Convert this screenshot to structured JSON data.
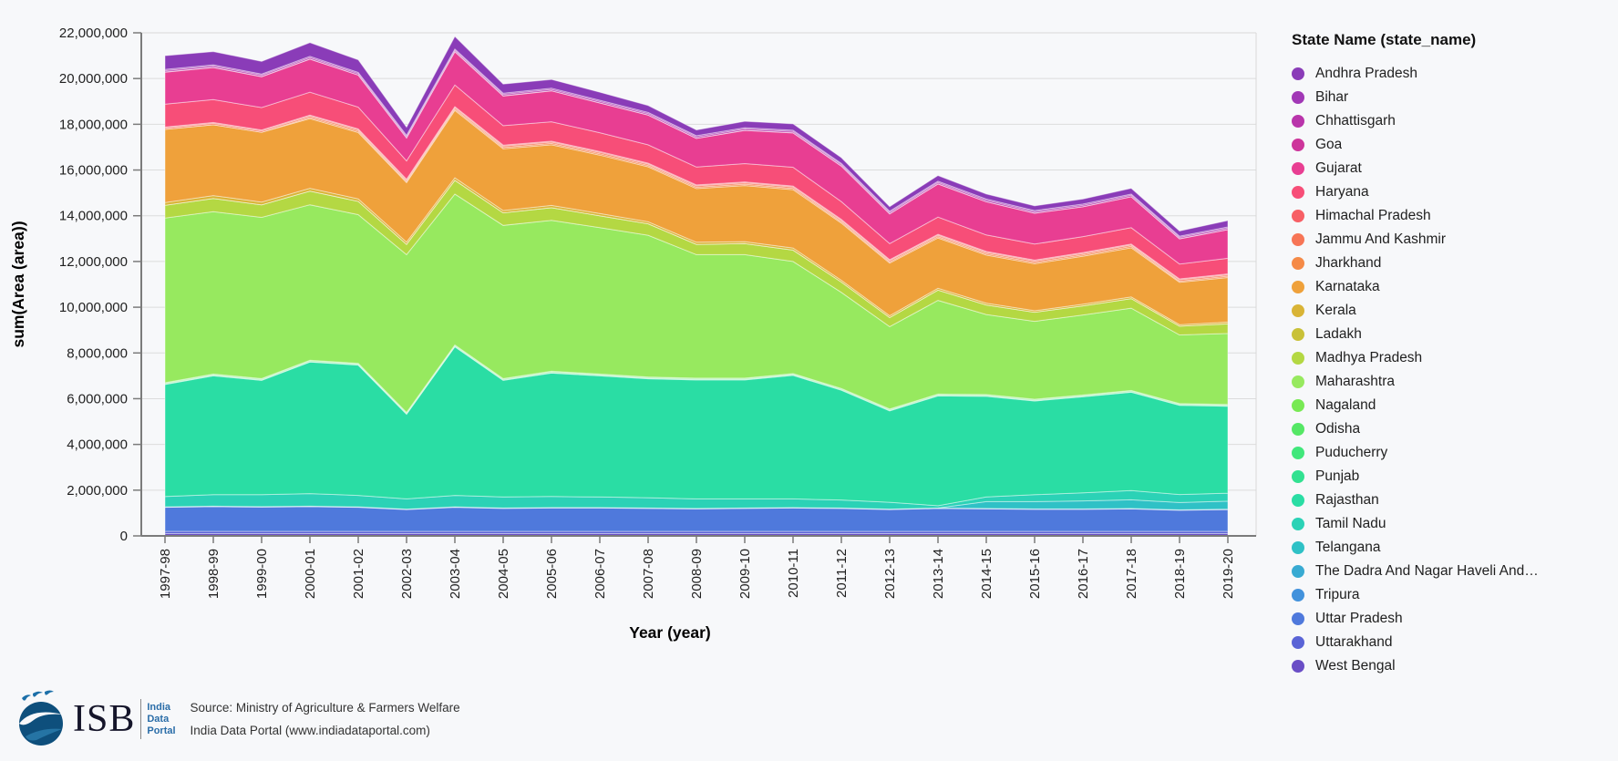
{
  "page": {
    "background": "#f7f8fa"
  },
  "chart": {
    "y_axis": {
      "title": "sum(Area (area))",
      "tick_labels": [
        "0",
        "2,000,000",
        "4,000,000",
        "6,000,000",
        "8,000,000",
        "10,000,000",
        "12,000,000",
        "14,000,000",
        "16,000,000",
        "18,000,000",
        "20,000,000",
        "22,000,000"
      ],
      "tick_step": 2000000
    },
    "x_axis": {
      "title": "Year (year)"
    },
    "legend": {
      "title": "State Name (state_name)"
    },
    "colors": {
      "gridline": "#dcdcdc",
      "frame": "#d8d8d8",
      "axis_domain": "#7b7b7b",
      "tick_text": "#1f1f1f"
    }
  },
  "chart_data": {
    "type": "area",
    "stacked": true,
    "title": "",
    "xlabel": "Year (year)",
    "ylabel": "sum(Area (area))",
    "ylim": [
      0,
      22000000
    ],
    "grid": true,
    "legend_position": "right",
    "legend_title": "State Name (state_name)",
    "stack_note": "first series renders as top band; stacking accumulates from last series (West Bengal) at bottom",
    "categories": [
      "1997-98",
      "1998-99",
      "1999-00",
      "2000-01",
      "2001-02",
      "2002-03",
      "2003-04",
      "2004-05",
      "2005-06",
      "2006-07",
      "2007-08",
      "2008-09",
      "2009-10",
      "2010-11",
      "2011-12",
      "2012-13",
      "2013-14",
      "2014-15",
      "2015-16",
      "2016-17",
      "2017-18",
      "2018-19",
      "2019-20"
    ],
    "series": [
      {
        "name": "Andhra Pradesh",
        "color": "#8a3cb8",
        "values": [
          600000,
          580000,
          550000,
          600000,
          550000,
          350000,
          550000,
          400000,
          380000,
          350000,
          300000,
          250000,
          280000,
          280000,
          250000,
          200000,
          250000,
          220000,
          200000,
          220000,
          250000,
          220000,
          280000
        ]
      },
      {
        "name": "Bihar",
        "color": "#a138b6",
        "values": [
          50000,
          50000,
          50000,
          50000,
          50000,
          50000,
          50000,
          50000,
          50000,
          50000,
          50000,
          50000,
          50000,
          50000,
          50000,
          50000,
          50000,
          50000,
          50000,
          50000,
          50000,
          50000,
          50000
        ]
      },
      {
        "name": "Chhattisgarh",
        "color": "#b935ab",
        "values": [
          60000,
          60000,
          60000,
          60000,
          60000,
          60000,
          60000,
          60000,
          60000,
          60000,
          60000,
          60000,
          60000,
          60000,
          60000,
          60000,
          60000,
          60000,
          60000,
          60000,
          60000,
          60000,
          60000
        ]
      },
      {
        "name": "Goa",
        "color": "#cd359b",
        "values": [
          10000,
          10000,
          10000,
          10000,
          10000,
          10000,
          10000,
          10000,
          10000,
          10000,
          10000,
          10000,
          10000,
          10000,
          10000,
          10000,
          10000,
          10000,
          10000,
          10000,
          10000,
          10000,
          10000
        ]
      },
      {
        "name": "Gujarat",
        "color": "#e83e92",
        "values": [
          1400000,
          1400000,
          1350000,
          1450000,
          1400000,
          1000000,
          1450000,
          1300000,
          1350000,
          1300000,
          1300000,
          1250000,
          1450000,
          1500000,
          1550000,
          1300000,
          1450000,
          1450000,
          1350000,
          1300000,
          1350000,
          1100000,
          1250000
        ]
      },
      {
        "name": "Haryana",
        "color": "#f74e78",
        "values": [
          1000000,
          1000000,
          980000,
          1000000,
          950000,
          800000,
          950000,
          850000,
          850000,
          820000,
          800000,
          780000,
          800000,
          820000,
          780000,
          700000,
          750000,
          720000,
          700000,
          700000,
          720000,
          650000,
          680000
        ]
      },
      {
        "name": "Himachal Pradesh",
        "color": "#f75f65",
        "values": [
          40000,
          40000,
          40000,
          40000,
          40000,
          40000,
          40000,
          40000,
          40000,
          40000,
          40000,
          40000,
          40000,
          40000,
          40000,
          40000,
          40000,
          40000,
          40000,
          40000,
          40000,
          40000,
          40000
        ]
      },
      {
        "name": "Jammu And Kashmir",
        "color": "#f77556",
        "values": [
          60000,
          60000,
          60000,
          60000,
          60000,
          60000,
          60000,
          60000,
          60000,
          60000,
          60000,
          60000,
          60000,
          60000,
          60000,
          60000,
          60000,
          60000,
          60000,
          60000,
          60000,
          60000,
          60000
        ]
      },
      {
        "name": "Jharkhand",
        "color": "#f58a47",
        "values": [
          0,
          0,
          0,
          50000,
          60000,
          50000,
          60000,
          60000,
          60000,
          60000,
          60000,
          60000,
          60000,
          60000,
          60000,
          50000,
          60000,
          60000,
          60000,
          60000,
          60000,
          50000,
          60000
        ]
      },
      {
        "name": "Karnataka",
        "color": "#efa13b",
        "values": [
          3200000,
          3100000,
          3050000,
          3050000,
          2900000,
          2600000,
          2950000,
          2700000,
          2650000,
          2550000,
          2400000,
          2350000,
          2450000,
          2550000,
          2500000,
          2300000,
          2200000,
          2100000,
          2050000,
          2100000,
          2150000,
          1850000,
          1950000
        ]
      },
      {
        "name": "Kerala",
        "color": "#d9b436",
        "values": [
          120000,
          120000,
          120000,
          120000,
          110000,
          100000,
          110000,
          100000,
          100000,
          100000,
          90000,
          90000,
          90000,
          90000,
          80000,
          80000,
          80000,
          80000,
          70000,
          70000,
          70000,
          70000,
          70000
        ]
      },
      {
        "name": "Ladakh",
        "color": "#c9c138",
        "values": [
          0,
          0,
          0,
          0,
          0,
          0,
          0,
          0,
          0,
          0,
          0,
          0,
          0,
          0,
          0,
          0,
          0,
          0,
          0,
          0,
          0,
          0,
          10000
        ]
      },
      {
        "name": "Madhya Pradesh",
        "color": "#b4d843",
        "values": [
          560000,
          580000,
          550000,
          600000,
          580000,
          450000,
          600000,
          550000,
          550000,
          520000,
          500000,
          450000,
          480000,
          500000,
          450000,
          400000,
          450000,
          420000,
          400000,
          400000,
          420000,
          380000,
          420000
        ]
      },
      {
        "name": "Maharashtra",
        "color": "#97e95f",
        "values": [
          7200000,
          7100000,
          7050000,
          6800000,
          6500000,
          6900000,
          6600000,
          6700000,
          6600000,
          6400000,
          6200000,
          5400000,
          5400000,
          4900000,
          4200000,
          3600000,
          4100000,
          3500000,
          3400000,
          3500000,
          3600000,
          3000000,
          3100000
        ]
      },
      {
        "name": "Nagaland",
        "color": "#78e954",
        "values": [
          20000,
          20000,
          20000,
          20000,
          20000,
          20000,
          20000,
          20000,
          20000,
          20000,
          20000,
          20000,
          20000,
          20000,
          20000,
          20000,
          20000,
          20000,
          20000,
          20000,
          20000,
          20000,
          20000
        ]
      },
      {
        "name": "Odisha",
        "color": "#55e765",
        "values": [
          30000,
          30000,
          30000,
          30000,
          30000,
          30000,
          30000,
          30000,
          30000,
          30000,
          30000,
          30000,
          30000,
          30000,
          30000,
          30000,
          30000,
          30000,
          30000,
          30000,
          30000,
          30000,
          30000
        ]
      },
      {
        "name": "Puducherry",
        "color": "#41e77b",
        "values": [
          10000,
          10000,
          10000,
          10000,
          10000,
          10000,
          10000,
          10000,
          10000,
          10000,
          10000,
          10000,
          10000,
          10000,
          10000,
          10000,
          10000,
          10000,
          10000,
          10000,
          10000,
          10000,
          10000
        ]
      },
      {
        "name": "Punjab",
        "color": "#32e191",
        "values": [
          20000,
          20000,
          20000,
          20000,
          20000,
          20000,
          20000,
          20000,
          20000,
          20000,
          20000,
          20000,
          20000,
          20000,
          20000,
          20000,
          20000,
          20000,
          20000,
          20000,
          20000,
          20000,
          20000
        ]
      },
      {
        "name": "Rajasthan",
        "color": "#2adda4",
        "values": [
          4900000,
          5200000,
          5000000,
          5750000,
          5700000,
          3700000,
          6500000,
          5100000,
          5400000,
          5300000,
          5200000,
          5200000,
          5200000,
          5400000,
          4800000,
          4000000,
          4800000,
          4400000,
          4100000,
          4200000,
          4300000,
          3900000,
          3800000
        ]
      },
      {
        "name": "Tamil Nadu",
        "color": "#2bd2b6",
        "values": [
          450000,
          500000,
          520000,
          550000,
          500000,
          450000,
          500000,
          480000,
          480000,
          460000,
          450000,
          420000,
          400000,
          380000,
          350000,
          300000,
          100000,
          200000,
          300000,
          350000,
          400000,
          350000,
          350000
        ]
      },
      {
        "name": "Telangana",
        "color": "#2fc1c6",
        "values": [
          0,
          0,
          0,
          0,
          0,
          0,
          0,
          0,
          0,
          0,
          0,
          0,
          0,
          0,
          0,
          0,
          0,
          300000,
          320000,
          350000,
          380000,
          320000,
          350000
        ]
      },
      {
        "name": "The Dadra And Nagar Haveli And…",
        "color": "#38aad2",
        "values": [
          10000,
          10000,
          10000,
          10000,
          10000,
          10000,
          10000,
          10000,
          10000,
          10000,
          10000,
          10000,
          10000,
          10000,
          10000,
          10000,
          10000,
          10000,
          10000,
          10000,
          10000,
          10000,
          10000
        ]
      },
      {
        "name": "Tripura",
        "color": "#4292dc",
        "values": [
          10000,
          10000,
          10000,
          10000,
          10000,
          10000,
          10000,
          10000,
          10000,
          10000,
          10000,
          10000,
          10000,
          10000,
          10000,
          10000,
          10000,
          10000,
          10000,
          10000,
          10000,
          10000,
          10000
        ]
      },
      {
        "name": "Uttar Pradesh",
        "color": "#4f79dc",
        "values": [
          1050000,
          1080000,
          1060000,
          1080000,
          1050000,
          950000,
          1050000,
          1000000,
          1020000,
          1020000,
          1000000,
          980000,
          1000000,
          1020000,
          1000000,
          950000,
          1000000,
          980000,
          960000,
          960000,
          980000,
          920000,
          950000
        ]
      },
      {
        "name": "Uttarakhand",
        "color": "#5a64d6",
        "values": [
          100000,
          100000,
          100000,
          100000,
          100000,
          100000,
          100000,
          100000,
          100000,
          100000,
          100000,
          100000,
          100000,
          100000,
          100000,
          100000,
          100000,
          100000,
          100000,
          100000,
          100000,
          100000,
          100000
        ]
      },
      {
        "name": "West Bengal",
        "color": "#6a4ec6",
        "values": [
          100000,
          100000,
          100000,
          100000,
          100000,
          100000,
          100000,
          100000,
          100000,
          100000,
          100000,
          100000,
          100000,
          100000,
          100000,
          100000,
          100000,
          100000,
          100000,
          100000,
          100000,
          100000,
          100000
        ]
      }
    ]
  },
  "footer": {
    "logo": {
      "isb": "ISB",
      "word1": "India",
      "word2": "Data",
      "word3": "Portal"
    },
    "source_line": "Source:  Ministry of Agriculture & Farmers Welfare",
    "portal_line": "India Data Portal (www.indiadataportal.com)"
  }
}
